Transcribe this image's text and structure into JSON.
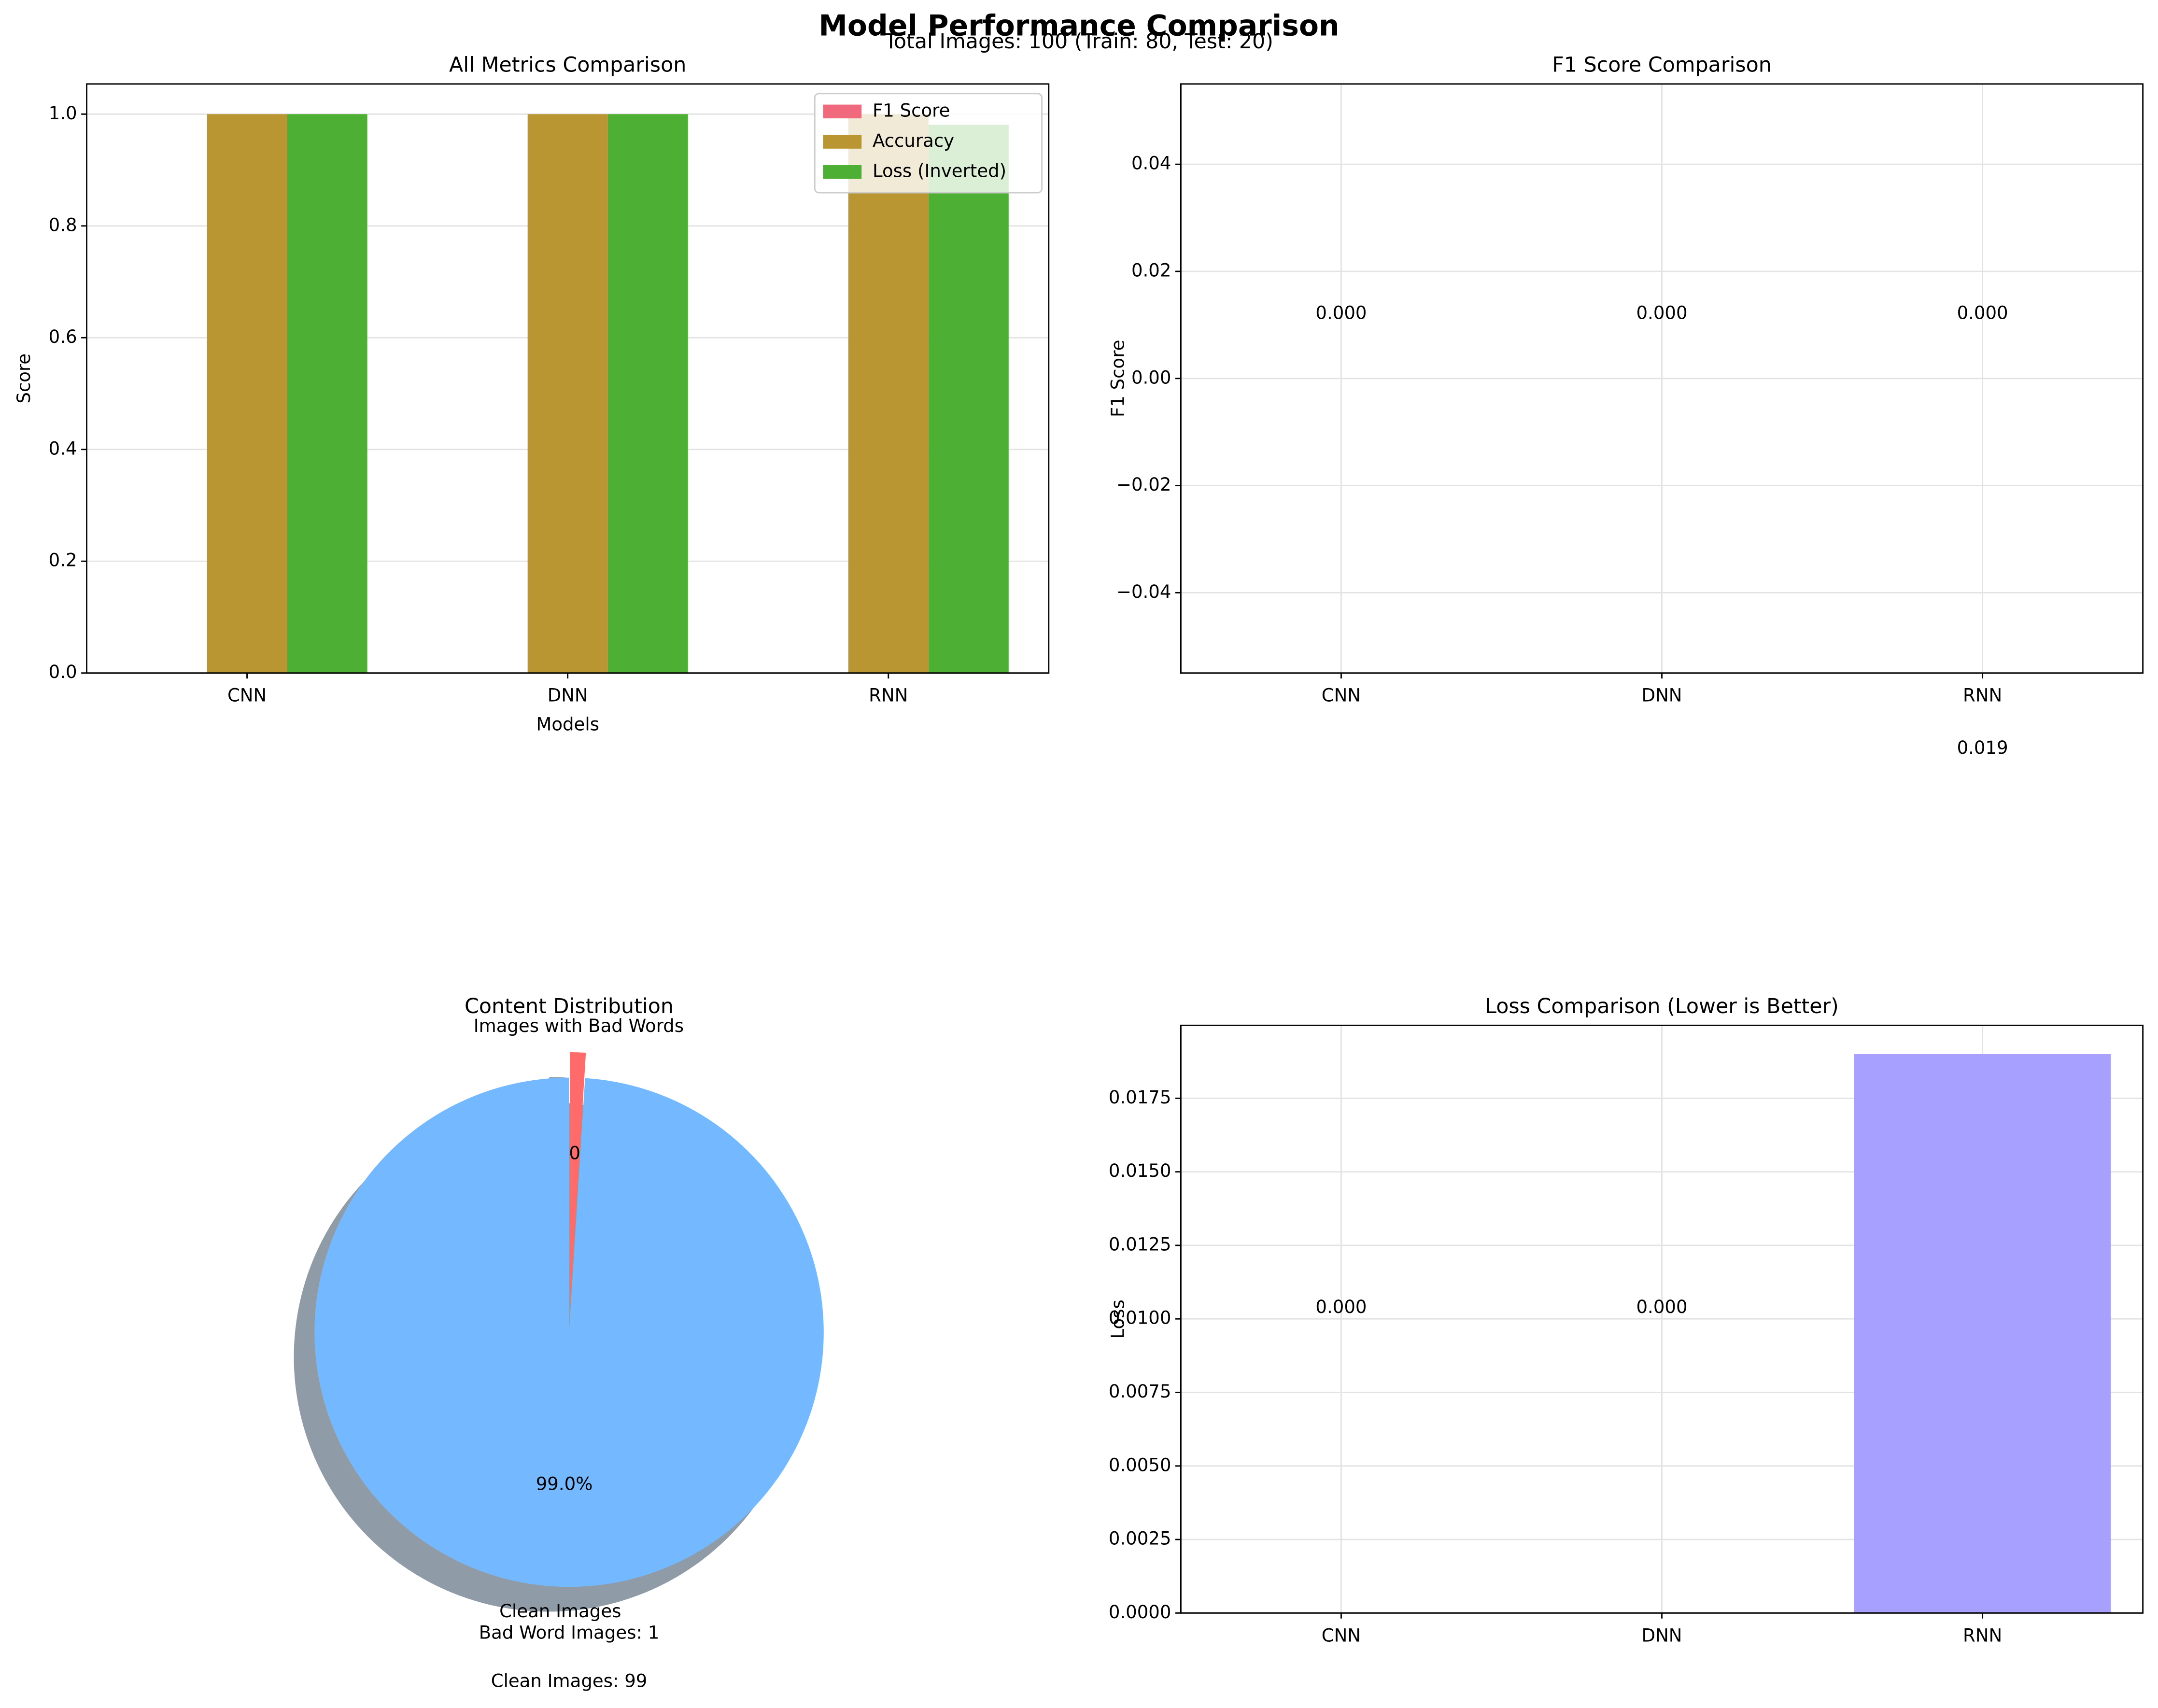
{
  "title": "Model Performance Comparison",
  "subtitle": "Total Images: 100 (Train: 80, Test: 20)",
  "chart_data": [
    {
      "type": "grouped_bar",
      "title": "All Metrics Comparison",
      "x_label": "Models",
      "y_label": "Score",
      "categories": [
        "CNN",
        "DNN",
        "RNN"
      ],
      "series": [
        {
          "name": "F1 Score",
          "color": "#f0697c",
          "values": [
            0,
            0,
            0
          ]
        },
        {
          "name": "Accuracy",
          "color": "#b99632",
          "values": [
            1,
            1,
            1
          ]
        },
        {
          "name": "Loss (Inverted)",
          "color": "#4daf33",
          "values": [
            1,
            1,
            0.981
          ]
        }
      ],
      "ylim": [
        0,
        1.054
      ],
      "yticks": [
        {
          "value": 0,
          "label": "0.0"
        },
        {
          "value": 0.2,
          "label": "0.2"
        },
        {
          "value": 0.4,
          "label": "0.4"
        },
        {
          "value": 0.6,
          "label": "0.6"
        },
        {
          "value": 0.8,
          "label": "0.8"
        },
        {
          "value": 1,
          "label": "1.0"
        }
      ],
      "grid": "y",
      "legend": "upper right"
    },
    {
      "type": "bar",
      "title": "F1 Score Comparison",
      "y_label": "F1 Score",
      "categories": [
        "CNN",
        "DNN",
        "RNN"
      ],
      "values": [
        0,
        0,
        0
      ],
      "value_labels": [
        "0.000",
        "0.000",
        "0.000"
      ],
      "color": "#ff6b6b",
      "annotation": "0.019",
      "ylim": [
        -0.055,
        0.055
      ],
      "yticks": [
        {
          "value": -0.04,
          "label": "−0.04"
        },
        {
          "value": -0.02,
          "label": "−0.02"
        },
        {
          "value": 0,
          "label": "0.00"
        },
        {
          "value": 0.02,
          "label": "0.02"
        },
        {
          "value": 0.04,
          "label": "0.04"
        }
      ],
      "grid": "both"
    },
    {
      "type": "pie",
      "title": "Content Distribution",
      "labels": [
        "Images with Bad Words",
        "Clean Images"
      ],
      "values": [
        1,
        99
      ],
      "value_labels": [
        "1.0%",
        "99.0%"
      ],
      "colors": [
        "#ff6b6b",
        "#74b9ff"
      ],
      "explode": [
        0.1,
        0
      ],
      "shadow": true,
      "startangle": 90,
      "counterclock": false,
      "annotations": [
        "Bad Word Images: 1",
        "Clean Images: 99"
      ]
    },
    {
      "type": "bar",
      "title": "Loss Comparison (Lower is Better)",
      "y_label": "Loss",
      "categories": [
        "CNN",
        "DNN",
        "RNN"
      ],
      "values": [
        0,
        0,
        0.019
      ],
      "value_labels": [
        "0.000",
        "0.000",
        null
      ],
      "color": "#a29bfe",
      "ylim": [
        0,
        0.01998
      ],
      "yticks": [
        {
          "value": 0,
          "label": "0.0000"
        },
        {
          "value": 0.0025,
          "label": "0.0025"
        },
        {
          "value": 0.005,
          "label": "0.0050"
        },
        {
          "value": 0.0075,
          "label": "0.0075"
        },
        {
          "value": 0.01,
          "label": "0.0100"
        },
        {
          "value": 0.0125,
          "label": "0.0125"
        },
        {
          "value": 0.015,
          "label": "0.0150"
        },
        {
          "value": 0.0175,
          "label": "0.0175"
        }
      ],
      "grid": "both"
    }
  ]
}
